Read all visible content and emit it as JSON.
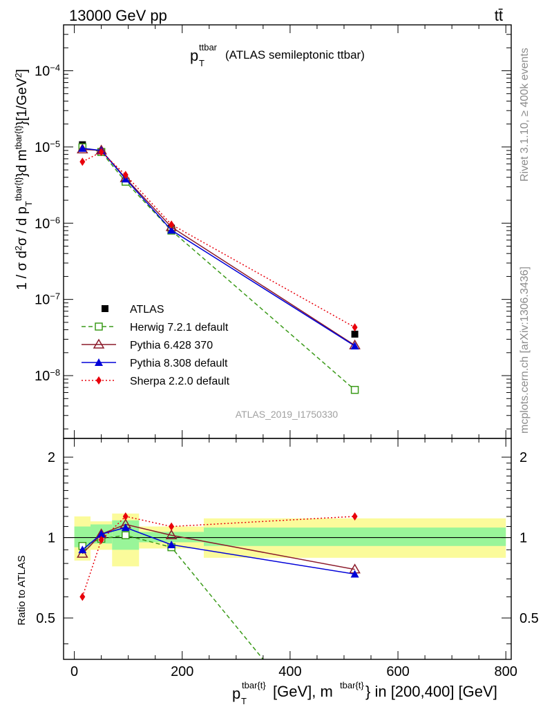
{
  "header": {
    "energy_label": "13000 GeV pp",
    "process_label": "tt̄"
  },
  "side_labels": {
    "rivet": "Rivet 3.1.10, ≥ 400k events",
    "mcplots": "mcplots.cern.ch [arXiv:1306.3436]"
  },
  "colors": {
    "atlas": "#000000",
    "herwig": "#3a9a18",
    "pythia6": "#8b1a2a",
    "pythia8": "#0000d8",
    "sherpa": "#e8000b",
    "band_inner": "#99f599",
    "band_outer": "#fbfb9b"
  },
  "chart_data": [
    {
      "type": "line",
      "panel": "main",
      "title_main": "p",
      "title_sub": "T",
      "title_sup": "ttbar",
      "title_rest": "(ATLAS semileptonic ttbar)",
      "analysis_label": "ATLAS_2019_I1750330",
      "ylabel": "1 / σ d²σ / d p_T^{tbar{t}}d m^{tbar{t}}[1/GeV²]",
      "yscale": "log",
      "xlim": [
        -20,
        810
      ],
      "ylim": [
        1.5e-09,
        0.0004
      ],
      "yticks": [
        {
          "value": 1e-08,
          "label": "10",
          "exp": "−8"
        },
        {
          "value": 1e-07,
          "label": "10",
          "exp": "−7"
        },
        {
          "value": 1e-06,
          "label": "10",
          "exp": "−6"
        },
        {
          "value": 1e-05,
          "label": "10",
          "exp": "−5"
        },
        {
          "value": 0.0001,
          "label": "10",
          "exp": "−4"
        }
      ],
      "legend_position": "bottom-left",
      "series": [
        {
          "name": "ATLAS",
          "style": "data",
          "marker": "square-filled",
          "x": [
            15,
            50,
            95,
            180,
            520
          ],
          "y": [
            1.07e-05,
            8.7e-06,
            3.5e-06,
            8.6e-07,
            3.5e-08
          ]
        },
        {
          "name": "Herwig 7.2.1 default",
          "style": "dashed",
          "marker": "square-open",
          "x": [
            15,
            50,
            95,
            180,
            520
          ],
          "y": [
            9.9e-06,
            8.6e-06,
            3.5e-06,
            8e-07,
            6.5e-09
          ]
        },
        {
          "name": "Pythia 6.428 370",
          "style": "solid",
          "marker": "triangle-open",
          "x": [
            15,
            50,
            95,
            180,
            520
          ],
          "y": [
            9.3e-06,
            9e-06,
            3.9e-06,
            8.9e-07,
            2.5e-08
          ]
        },
        {
          "name": "Pythia 8.308 default",
          "style": "solid",
          "marker": "triangle-filled",
          "x": [
            15,
            50,
            95,
            180,
            520
          ],
          "y": [
            9.6e-06,
            9e-06,
            3.8e-06,
            8.1e-07,
            2.45e-08
          ]
        },
        {
          "name": "Sherpa 2.2.0 default",
          "style": "dotted",
          "marker": "diamond-filled",
          "x": [
            15,
            50,
            95,
            180,
            520
          ],
          "y": [
            6.4e-06,
            8.6e-06,
            4.3e-06,
            9.6e-07,
            4.3e-08
          ]
        }
      ]
    },
    {
      "type": "line",
      "panel": "ratio",
      "ylabel": "Ratio to ATLAS",
      "xlabel_main": "p",
      "xlabel_sub": "T",
      "xlabel_sup": "tbar{t}",
      "xlabel_mid": "[GeV], m",
      "xlabel_sup2": "tbar{t}",
      "xlabel_tail": "} in [200,400] [GeV]",
      "yscale": "log",
      "xlim": [
        -20,
        810
      ],
      "ylim": [
        0.35,
        2.35
      ],
      "xticks": [
        0,
        200,
        400,
        600,
        800
      ],
      "yticks": [
        {
          "value": 0.5,
          "label": "0.5"
        },
        {
          "value": 1,
          "label": "1"
        },
        {
          "value": 2,
          "label": "2"
        }
      ],
      "bands": [
        {
          "x0": 0,
          "x1": 30,
          "inner": [
            0.92,
            1.1
          ],
          "outer": [
            0.82,
            1.2
          ]
        },
        {
          "x0": 30,
          "x1": 70,
          "inner": [
            0.95,
            1.12
          ],
          "outer": [
            0.9,
            1.15
          ]
        },
        {
          "x0": 70,
          "x1": 120,
          "inner": [
            0.9,
            1.16
          ],
          "outer": [
            0.78,
            1.23
          ]
        },
        {
          "x0": 120,
          "x1": 240,
          "inner": [
            0.96,
            1.05
          ],
          "outer": [
            0.91,
            1.1
          ]
        },
        {
          "x0": 240,
          "x1": 800,
          "inner": [
            0.93,
            1.09
          ],
          "outer": [
            0.84,
            1.18
          ]
        }
      ],
      "series": [
        {
          "name": "Herwig 7.2.1 default",
          "style": "dashed",
          "marker": "square-open",
          "x": [
            15,
            50,
            95,
            180,
            350
          ],
          "y": [
            0.93,
            0.99,
            1.02,
            0.92,
            0.35
          ],
          "marker_count": 4
        },
        {
          "name": "Pythia 6.428 370",
          "style": "solid",
          "marker": "triangle-open",
          "x": [
            15,
            50,
            95,
            180,
            520
          ],
          "y": [
            0.87,
            1.03,
            1.12,
            1.02,
            0.76
          ]
        },
        {
          "name": "Pythia 8.308 default",
          "style": "solid",
          "marker": "triangle-filled",
          "x": [
            15,
            50,
            95,
            180,
            520
          ],
          "y": [
            0.9,
            1.03,
            1.09,
            0.94,
            0.73
          ]
        },
        {
          "name": "Sherpa 2.2.0 default",
          "style": "dotted",
          "marker": "diamond-filled",
          "x": [
            15,
            50,
            95,
            180,
            520
          ],
          "y": [
            0.6,
            0.98,
            1.2,
            1.1,
            1.2
          ]
        }
      ]
    }
  ]
}
